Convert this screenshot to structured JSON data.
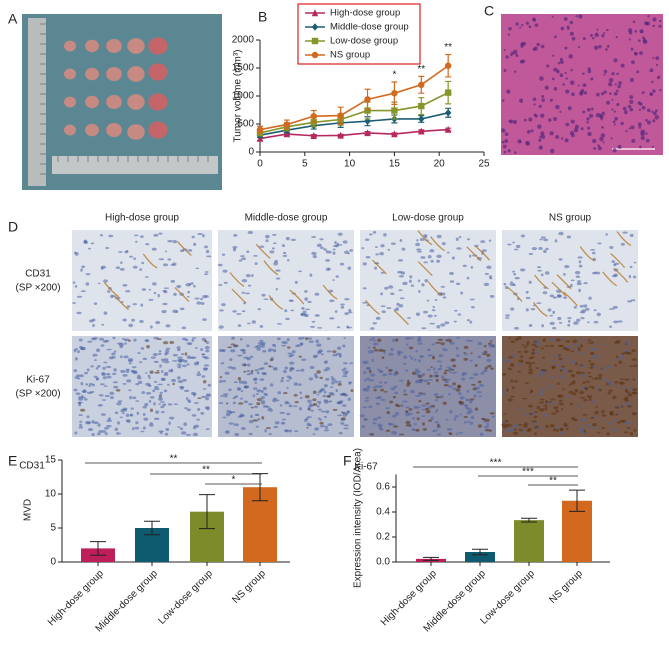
{
  "panel_labels": [
    "A",
    "B",
    "C",
    "D",
    "E",
    "F"
  ],
  "panel_d": {
    "columns": [
      "High-dose group",
      "Middle-dose group",
      "Low-dose group",
      "NS group"
    ],
    "rows": [
      {
        "name": "CD31",
        "note": "(SP ×200)"
      },
      {
        "name": "Ki-67",
        "note": "(SP ×200)"
      }
    ]
  },
  "chart_data": [
    {
      "type": "line",
      "ylabel": "Tumor volume (mm³)",
      "x": [
        0,
        3,
        6,
        9,
        12,
        15,
        18,
        21
      ],
      "xlim": [
        0,
        25
      ],
      "xticks": [
        0,
        5,
        10,
        15,
        20,
        25
      ],
      "ylim": [
        0,
        2000
      ],
      "yticks": [
        0,
        500,
        1000,
        1500,
        2000
      ],
      "legend": "upper left",
      "series": [
        {
          "name": "High-dose group",
          "color": "#b5295f",
          "marker": "triangle",
          "values": [
            240,
            320,
            290,
            295,
            340,
            320,
            370,
            400
          ],
          "errors": [
            40,
            30,
            20,
            20,
            25,
            20,
            25,
            25
          ]
        },
        {
          "name": "Middle-dose group",
          "color": "#1d5d74",
          "marker": "diamond",
          "values": [
            300,
            390,
            470,
            520,
            550,
            590,
            590,
            700
          ],
          "errors": [
            40,
            50,
            60,
            80,
            80,
            70,
            60,
            80
          ]
        },
        {
          "name": "Low-dose group",
          "color": "#86962a",
          "marker": "square",
          "values": [
            340,
            450,
            530,
            580,
            740,
            740,
            820,
            1060
          ],
          "errors": [
            50,
            70,
            80,
            100,
            150,
            150,
            150,
            200
          ]
        },
        {
          "name": "NS group",
          "color": "#d2691e",
          "marker": "circle",
          "values": [
            400,
            490,
            640,
            650,
            940,
            1050,
            1200,
            1540
          ],
          "errors": [
            60,
            80,
            100,
            150,
            180,
            200,
            150,
            200
          ]
        }
      ],
      "annotations": [
        {
          "x": 15,
          "label": "*"
        },
        {
          "x": 18,
          "label": "**"
        },
        {
          "x": 21,
          "label": "**"
        }
      ]
    },
    {
      "type": "bar",
      "title": "CD31",
      "ylabel": "MVD",
      "categories": [
        "High-dose group",
        "Middle-dose group",
        "Low-dose group",
        "NS group"
      ],
      "values": [
        2,
        5,
        7.4,
        11
      ],
      "errors": [
        1,
        1,
        2.5,
        2
      ],
      "colors": [
        "#be1e5a",
        "#0e5a6e",
        "#7d8b2a",
        "#d2691e"
      ],
      "ylim": [
        0,
        15
      ],
      "yticks": [
        0,
        5,
        10,
        15
      ],
      "significance": [
        "**",
        "**",
        "*"
      ]
    },
    {
      "type": "bar",
      "title": "Ki-67",
      "ylabel": "Expression intensity (IOD/Area)",
      "categories": [
        "High-dose group",
        "Middle-dose group",
        "Low-dose group",
        "NS group"
      ],
      "values": [
        0.025,
        0.08,
        0.335,
        0.49
      ],
      "errors": [
        0.012,
        0.022,
        0.015,
        0.085
      ],
      "colors": [
        "#be1e5a",
        "#0e5a6e",
        "#7d8b2a",
        "#d2691e"
      ],
      "ylim": [
        0,
        0.7
      ],
      "yticks": [
        {
          "value": 0,
          "label": "0.0"
        },
        0.2,
        0.4,
        0.6
      ],
      "significance": [
        "***",
        "***",
        "**"
      ]
    }
  ]
}
